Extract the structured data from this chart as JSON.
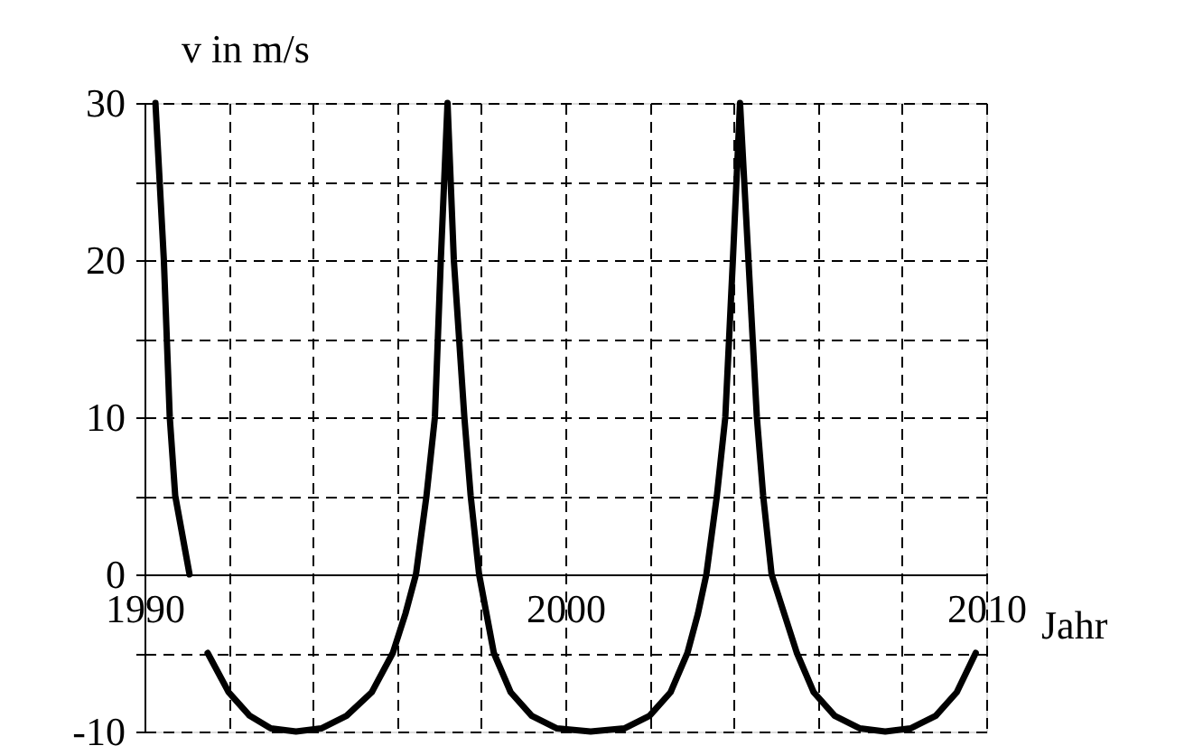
{
  "chart_data": {
    "type": "line",
    "xlabel": "Jahr",
    "ylabel": "v in m/s",
    "xlim": [
      1990,
      2010
    ],
    "ylim": [
      -10,
      30
    ],
    "xticks": [
      1990,
      {
        "value": 1992,
        "label": null
      },
      {
        "value": 1994,
        "label": null
      },
      {
        "value": 1996,
        "label": null
      },
      {
        "value": 1998,
        "label": null
      },
      2000,
      {
        "value": 2002,
        "label": null
      },
      {
        "value": 2004,
        "label": null
      },
      {
        "value": 2006,
        "label": null
      },
      {
        "value": 2008,
        "label": null
      },
      2010
    ],
    "yticks": [
      -10,
      {
        "value": -5,
        "label": null
      },
      0,
      {
        "value": 5,
        "label": null
      },
      10,
      {
        "value": 15,
        "label": null
      },
      20,
      {
        "value": 25,
        "label": null
      },
      30
    ],
    "grid": true,
    "legend": false,
    "marker": "none",
    "line_style": "solid",
    "series": [
      {
        "color": "#000000",
        "x": [
          1990.26,
          1990.46,
          1990.6,
          1990.73,
          1991.07,
          1991.3,
          1991.5,
          1992.0,
          1992.5,
          1993.0,
          1993.6,
          1994.2,
          1994.8,
          1995.4,
          1995.9,
          1996.2,
          1996.45,
          1996.7,
          1996.9,
          1997.04,
          1997.2,
          1997.35,
          1997.6,
          1997.75,
          1997.95,
          1998.3,
          1998.7,
          1999.2,
          1999.8,
          2000.6,
          2001.4,
          2002.0,
          2002.5,
          2002.9,
          2003.15,
          2003.35,
          2003.6,
          2003.8,
          2003.98,
          2004.15,
          2004.35,
          2004.55,
          2004.7,
          2004.9,
          2005.2,
          2005.5,
          2005.9,
          2006.4,
          2007.0,
          2007.6,
          2008.2,
          2008.8,
          2009.3,
          2009.75
        ],
        "values": [
          30,
          20,
          10,
          5,
          0,
          null,
          -5,
          -7.5,
          -9,
          -9.8,
          -10,
          -9.8,
          -9,
          -7.5,
          -5,
          -2.5,
          0,
          5,
          10,
          20,
          30,
          20,
          10,
          5,
          0,
          -5,
          -7.5,
          -9,
          -9.8,
          -10,
          -9.8,
          -9,
          -7.5,
          -5,
          -2.5,
          0,
          5,
          10,
          20,
          30,
          20,
          10,
          5,
          0,
          -2.5,
          -5,
          -7.5,
          -9,
          -9.8,
          -10,
          -9.8,
          -9,
          -7.5,
          -5
        ]
      }
    ]
  }
}
